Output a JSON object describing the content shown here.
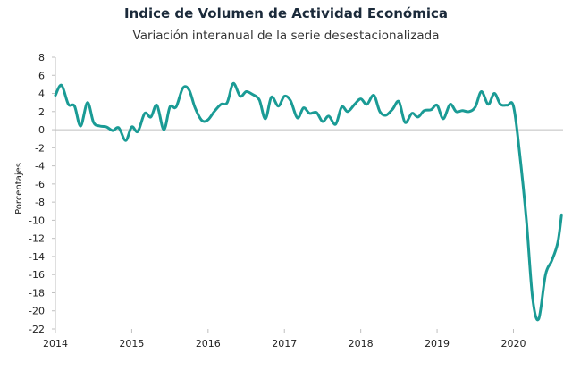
{
  "chart_data": {
    "type": "line",
    "title": "Indice de Volumen de  Actividad Económica",
    "subtitle": "Variación interanual de la serie desestacionalizada",
    "ylabel": "Porcentajes",
    "xlabel": "",
    "ylim": [
      -22,
      8
    ],
    "xlim": [
      2014,
      2020.65
    ],
    "yticks": [
      8,
      6,
      4,
      2,
      0,
      -2,
      -4,
      -6,
      -8,
      -10,
      -12,
      -14,
      -16,
      -18,
      -20,
      -22
    ],
    "xticks": [
      2014,
      2015,
      2016,
      2017,
      2018,
      2019,
      2020
    ],
    "grid": false,
    "legend": "none",
    "color": "#1a9b95",
    "series": [
      {
        "x": [
          2014.0,
          2014.08,
          2014.17,
          2014.25,
          2014.33,
          2014.42,
          2014.5,
          2014.58,
          2014.67,
          2014.75,
          2014.83,
          2014.92,
          2015.0,
          2015.08,
          2015.17,
          2015.25,
          2015.33,
          2015.42,
          2015.5,
          2015.58,
          2015.67,
          2015.75,
          2015.83,
          2015.92,
          2016.0,
          2016.08,
          2016.17,
          2016.25,
          2016.33,
          2016.42,
          2016.5,
          2016.58,
          2016.67,
          2016.75,
          2016.83,
          2016.92,
          2017.0,
          2017.08,
          2017.17,
          2017.25,
          2017.33,
          2017.42,
          2017.5,
          2017.58,
          2017.67,
          2017.75,
          2017.83,
          2017.92,
          2018.0,
          2018.08,
          2018.17,
          2018.25,
          2018.33,
          2018.42,
          2018.5,
          2018.58,
          2018.67,
          2018.75,
          2018.83,
          2018.92,
          2019.0,
          2019.08,
          2019.17,
          2019.25,
          2019.33,
          2019.42,
          2019.5,
          2019.58,
          2019.67,
          2019.75,
          2019.83,
          2019.92,
          2020.0,
          2020.08,
          2020.17,
          2020.25,
          2020.33,
          2020.42,
          2020.5,
          2020.58,
          2020.63
        ],
        "values": [
          3.8,
          4.9,
          2.8,
          2.6,
          0.4,
          3.0,
          0.8,
          0.4,
          0.3,
          -0.1,
          0.2,
          -1.2,
          0.3,
          -0.2,
          1.8,
          1.4,
          2.7,
          0.0,
          2.5,
          2.5,
          4.6,
          4.4,
          2.4,
          1.0,
          1.1,
          2.0,
          2.8,
          3.0,
          5.1,
          3.7,
          4.2,
          3.9,
          3.3,
          1.2,
          3.6,
          2.6,
          3.7,
          3.2,
          1.3,
          2.4,
          1.8,
          1.9,
          0.9,
          1.5,
          0.6,
          2.5,
          2.0,
          2.8,
          3.4,
          2.8,
          3.8,
          2.0,
          1.6,
          2.3,
          3.1,
          0.8,
          1.8,
          1.4,
          2.1,
          2.2,
          2.7,
          1.2,
          2.8,
          2.0,
          2.1,
          2.0,
          2.5,
          4.2,
          2.8,
          4.0,
          2.8,
          2.7,
          2.6,
          -2.5,
          -10.0,
          -18.5,
          -20.9,
          -16.0,
          -14.5,
          -12.5,
          -9.4
        ]
      }
    ]
  }
}
